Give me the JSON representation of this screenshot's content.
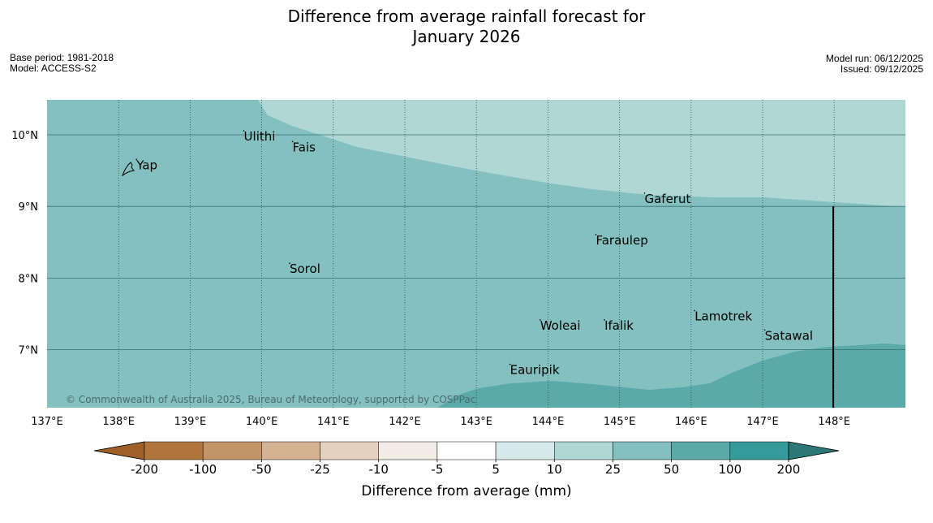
{
  "title": {
    "line1": "Difference from average rainfall forecast for",
    "line2": "January 2026"
  },
  "meta_left": {
    "base_period": "Base period: 1981-2018",
    "model": "Model: ACCESS-S2"
  },
  "meta_right": {
    "model_run": "Model run: 06/12/2025",
    "issued": "Issued: 09/12/2025"
  },
  "map": {
    "lat_labels": [
      "10°N",
      "9°N",
      "8°N",
      "7°N"
    ],
    "lon_labels": [
      "137°E",
      "138°E",
      "139°E",
      "140°E",
      "141°E",
      "142°E",
      "143°E",
      "144°E",
      "145°E",
      "146°E",
      "147°E",
      "148°E"
    ],
    "places": [
      {
        "name": "Ulithi",
        "lon": 139.75,
        "lat": 9.92
      },
      {
        "name": "Fais",
        "lon": 140.43,
        "lat": 9.77
      },
      {
        "name": "Yap",
        "lon": 138.25,
        "lat": 9.52
      },
      {
        "name": "Gaferut",
        "lon": 145.35,
        "lat": 9.05
      },
      {
        "name": "Faraulep",
        "lon": 144.67,
        "lat": 8.47
      },
      {
        "name": "Sorol",
        "lon": 140.39,
        "lat": 8.07
      },
      {
        "name": "Lamotrek",
        "lon": 146.05,
        "lat": 7.41
      },
      {
        "name": "Woleai",
        "lon": 143.89,
        "lat": 7.28
      },
      {
        "name": "Ifalik",
        "lon": 144.79,
        "lat": 7.28
      },
      {
        "name": "Satawal",
        "lon": 147.03,
        "lat": 7.14
      },
      {
        "name": "Eauripik",
        "lon": 143.47,
        "lat": 6.66
      }
    ],
    "copyright": "© Commonwealth of Australia 2025, Bureau of Meteorology, supported by COSPPac",
    "colors": {
      "band_10_25": "#afd7d6",
      "band_25_50": "#83c0bf",
      "band_50_100": "#5aaaa9"
    }
  },
  "legend": {
    "title": "Difference from average (mm)",
    "tick_labels": [
      "-200",
      "-100",
      "-50",
      "-25",
      "-10",
      "-5",
      "5",
      "10",
      "25",
      "50",
      "100",
      "200"
    ],
    "colors": [
      "#9e6028",
      "#b0743c",
      "#c29468",
      "#d5b392",
      "#e5d1c0",
      "#f1ede6",
      "#ffffff",
      "#d5e9e8",
      "#afd7d6",
      "#83c0bf",
      "#5aaaa9",
      "#349b9a",
      "#2b7877"
    ]
  }
}
